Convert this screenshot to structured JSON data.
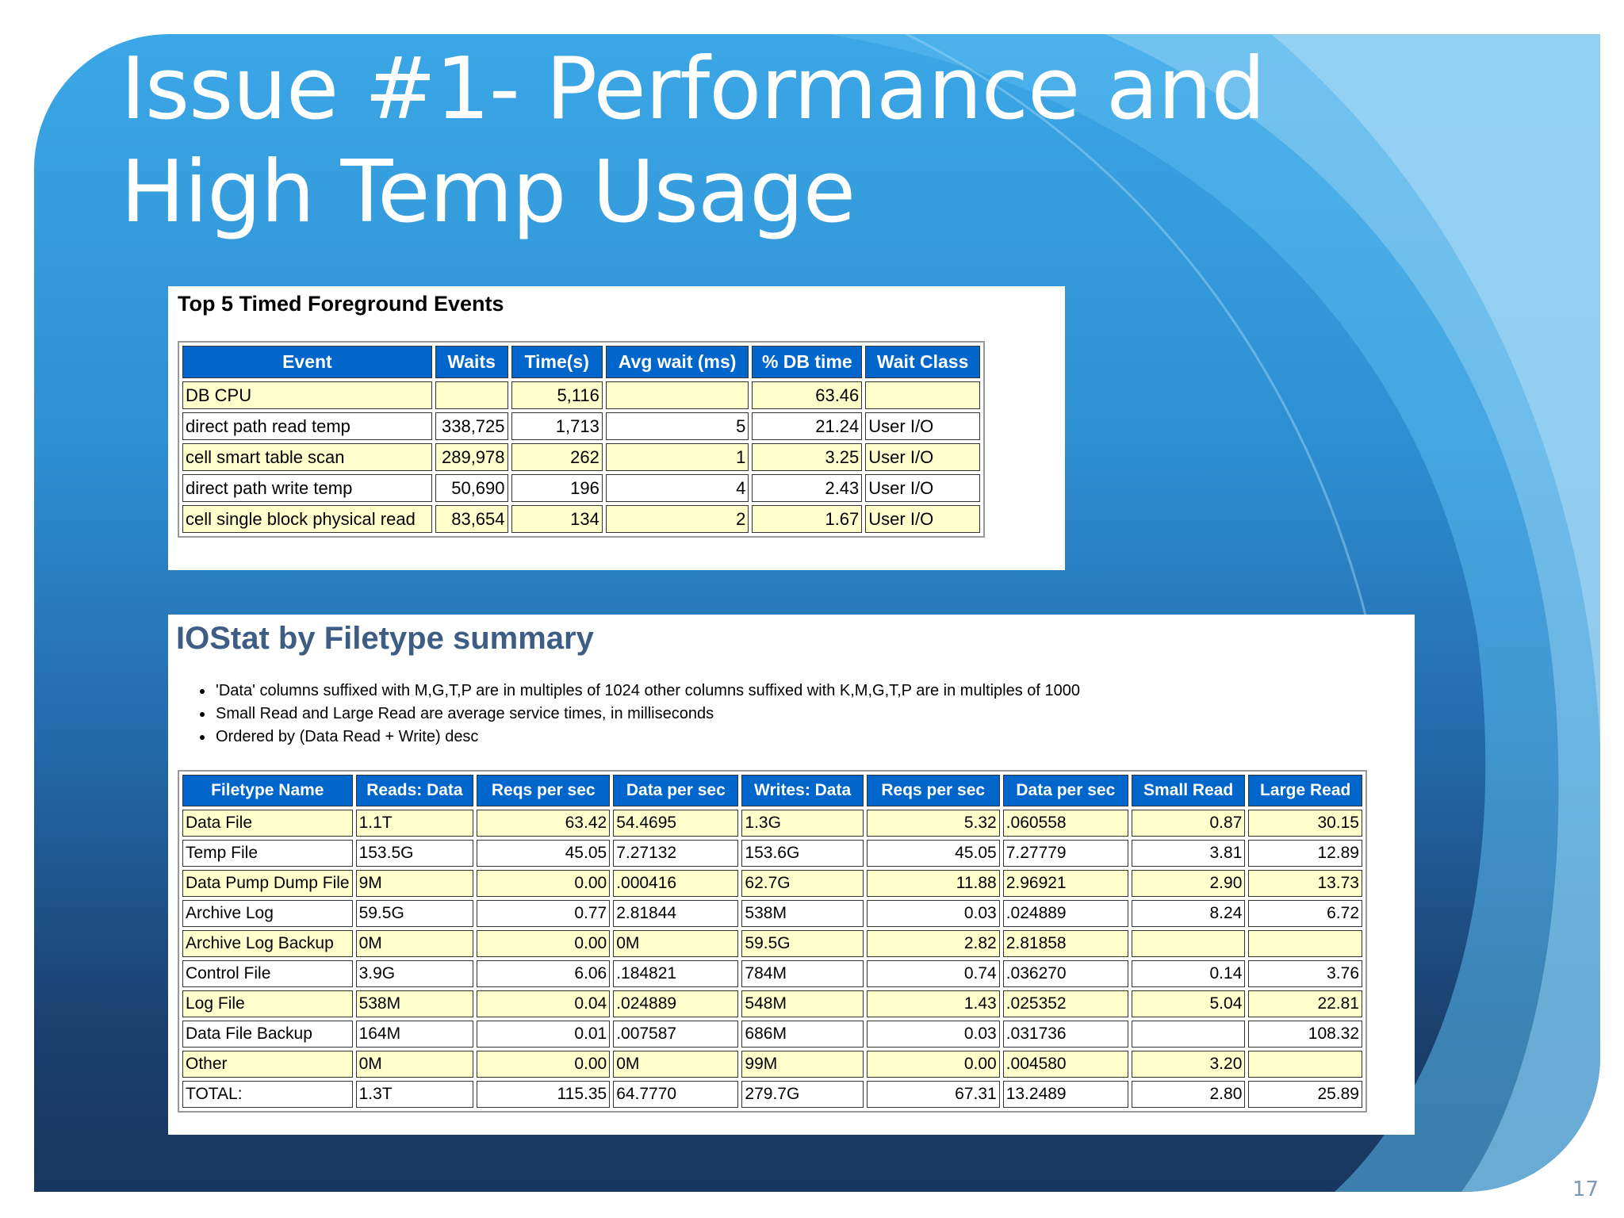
{
  "slide": {
    "title": "Issue #1- Performance and High Temp Usage",
    "page_number": "17"
  },
  "top_events": {
    "heading": "Top 5 Timed Foreground Events",
    "columns": [
      "Event",
      "Waits",
      "Time(s)",
      "Avg wait (ms)",
      "% DB time",
      "Wait Class"
    ],
    "rows": [
      [
        "DB CPU",
        "",
        "5,116",
        "",
        "63.46",
        ""
      ],
      [
        "direct path read temp",
        "338,725",
        "1,713",
        "5",
        "21.24",
        "User I/O"
      ],
      [
        "cell smart table scan",
        "289,978",
        "262",
        "1",
        "3.25",
        "User I/O"
      ],
      [
        "direct path write temp",
        "50,690",
        "196",
        "4",
        "2.43",
        "User I/O"
      ],
      [
        "cell single block physical read",
        "83,654",
        "134",
        "2",
        "1.67",
        "User I/O"
      ]
    ]
  },
  "iostat": {
    "heading": "IOStat by Filetype summary",
    "notes": [
      "'Data' columns suffixed with M,G,T,P are in multiples of 1024 other columns suffixed with K,M,G,T,P are in multiples of 1000",
      "Small Read and Large Read are average service times, in milliseconds",
      "Ordered by (Data Read + Write) desc"
    ],
    "columns": [
      "Filetype Name",
      "Reads: Data",
      "Reqs per sec",
      "Data per sec",
      "Writes: Data",
      "Reqs per sec",
      "Data per sec",
      "Small Read",
      "Large Read"
    ],
    "rows": [
      [
        "Data File",
        "1.1T",
        "63.42",
        "54.4695",
        "1.3G",
        "5.32",
        ".060558",
        "0.87",
        "30.15"
      ],
      [
        "Temp File",
        "153.5G",
        "45.05",
        "7.27132",
        "153.6G",
        "45.05",
        "7.27779",
        "3.81",
        "12.89"
      ],
      [
        "Data Pump Dump File",
        "9M",
        "0.00",
        ".000416",
        "62.7G",
        "11.88",
        "2.96921",
        "2.90",
        "13.73"
      ],
      [
        "Archive Log",
        "59.5G",
        "0.77",
        "2.81844",
        "538M",
        "0.03",
        ".024889",
        "8.24",
        "6.72"
      ],
      [
        "Archive Log Backup",
        "0M",
        "0.00",
        "0M",
        "59.5G",
        "2.82",
        "2.81858",
        "",
        ""
      ],
      [
        "Control File",
        "3.9G",
        "6.06",
        ".184821",
        "784M",
        "0.74",
        ".036270",
        "0.14",
        "3.76"
      ],
      [
        "Log File",
        "538M",
        "0.04",
        ".024889",
        "548M",
        "1.43",
        ".025352",
        "5.04",
        "22.81"
      ],
      [
        "Data File Backup",
        "164M",
        "0.01",
        ".007587",
        "686M",
        "0.03",
        ".031736",
        "",
        "108.32"
      ],
      [
        "Other",
        "0M",
        "0.00",
        "0M",
        "99M",
        "0.00",
        ".004580",
        "3.20",
        ""
      ],
      [
        "TOTAL:",
        "1.3T",
        "115.35",
        "64.7770",
        "279.7G",
        "67.31",
        "13.2489",
        "2.80",
        "25.89"
      ]
    ]
  }
}
